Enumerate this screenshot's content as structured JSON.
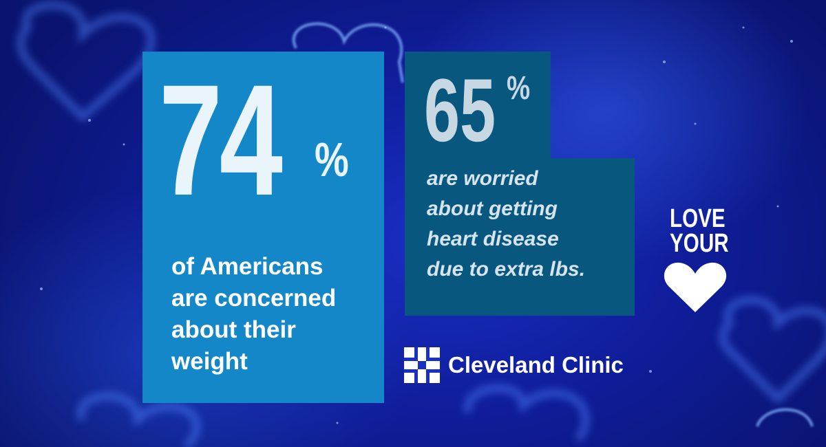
{
  "stat_primary": {
    "number": "74",
    "percent_sign": "%",
    "text": "of Americans\nare concerned\nabout their\nweight"
  },
  "stat_secondary": {
    "number": "65",
    "percent_sign": "%",
    "text": "are worried\nabout getting\nheart disease\ndue to extra lbs."
  },
  "campaign": {
    "line1": "LOVE",
    "line2": "YOUR",
    "icon": "heart-icon"
  },
  "brand": {
    "name": "Cleveland Clinic",
    "icon": "cleveland-clinic-logo-icon"
  },
  "colors": {
    "background": "#0f1d9a",
    "panel_primary": "#1487c9",
    "panel_secondary": "#08577f",
    "text_light": "#e9f4fb"
  }
}
